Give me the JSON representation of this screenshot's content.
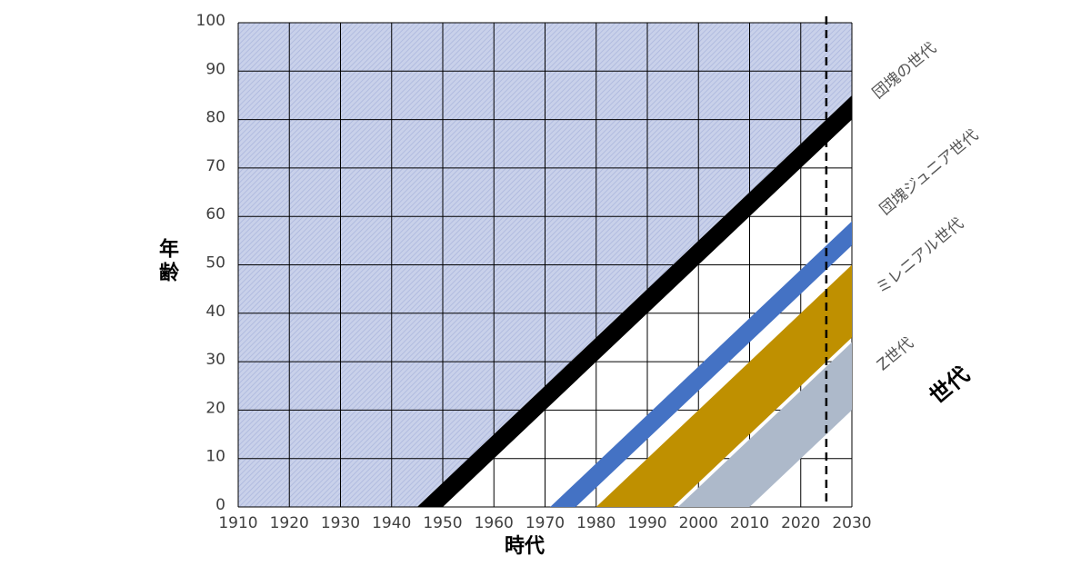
{
  "chart_data": {
    "type": "lexis",
    "xlabel": "時代",
    "ylabel": "年齢",
    "legend_title": "世代",
    "xlim": [
      1910,
      2030
    ],
    "ylim": [
      0,
      100
    ],
    "xticks": [
      1910,
      1920,
      1930,
      1940,
      1950,
      1960,
      1970,
      1980,
      1990,
      2000,
      2010,
      2020,
      2030
    ],
    "yticks": [
      0,
      10,
      20,
      30,
      40,
      50,
      60,
      70,
      80,
      90,
      100
    ],
    "grid": true,
    "reference_line": 2025,
    "series": [
      {
        "name": "団塊の世代",
        "color": "#000000",
        "birth_years": [
          1945,
          1950
        ]
      },
      {
        "name": "団塊ジュニア世代",
        "color": "#4472c4",
        "birth_years": [
          1971,
          1976
        ]
      },
      {
        "name": "ミレニアル世代",
        "color": "#bf9000",
        "birth_years": [
          1980,
          1995
        ]
      },
      {
        "name": "Z世代",
        "color": "#adb9ca",
        "birth_years": [
          1996,
          2010
        ]
      }
    ]
  }
}
